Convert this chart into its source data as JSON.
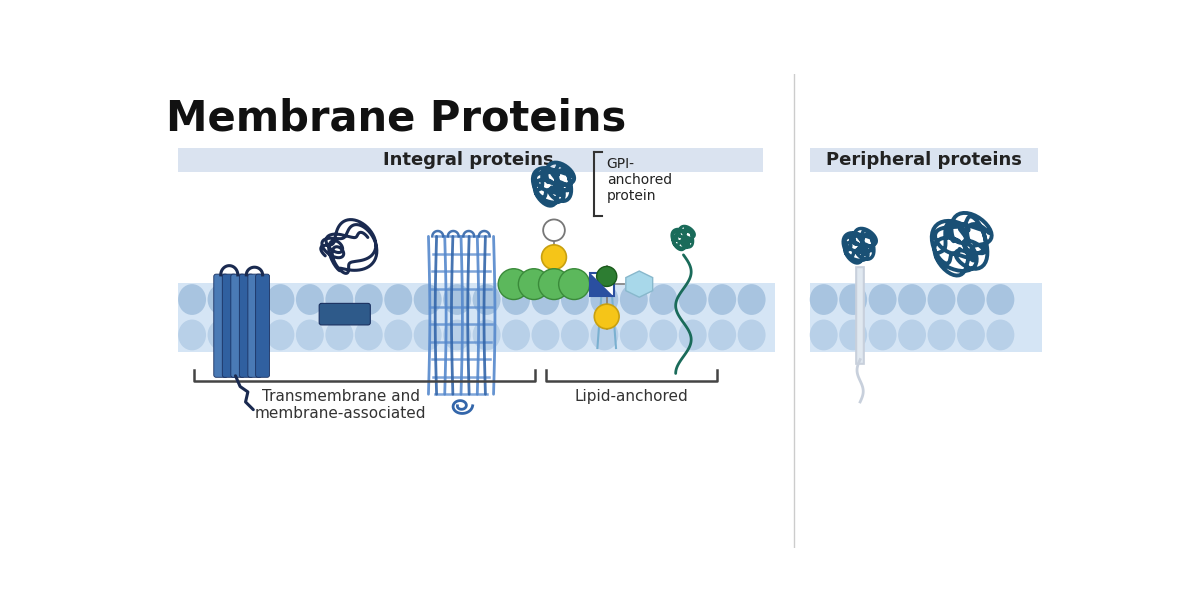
{
  "title": "Membrane Proteins",
  "title_fontsize": 30,
  "title_fontweight": "bold",
  "bg_color": "#ffffff",
  "header_integral_label": "Integral proteins",
  "header_peripheral_label": "Peripheral proteins",
  "header_bg": "#dae3f0",
  "header_fontsize": 13,
  "gpi_label": "GPI-\nanchored\nprotein",
  "bracket_label1": "Transmembrane and\nmembrane-associated",
  "bracket_label2": "Lipid-anchored",
  "bracket_fontsize": 11,
  "dark_blue_protein": "#1a4a70",
  "medium_blue": "#4472c4",
  "light_blue_barrel": "#6699cc",
  "steel_blue_helix": "#4a7ab5",
  "green_chain": "#5cb85c",
  "dark_green": "#2d7d32",
  "yellow_chain": "#f5c518",
  "white_circle": "#ffffff",
  "light_hex": "#a8d8ea",
  "navy_square": "#2a4fa0",
  "teal_squiggle": "#1a6b5a",
  "gray_linker": "#c8d0dc",
  "membrane_bg": "#d5e5f5",
  "mem_dot_top": "#a8c4e0",
  "mem_dot_bot": "#b8d0e8",
  "divider_color": "#cccccc",
  "bracket_color": "#444444",
  "text_color": "#333333"
}
